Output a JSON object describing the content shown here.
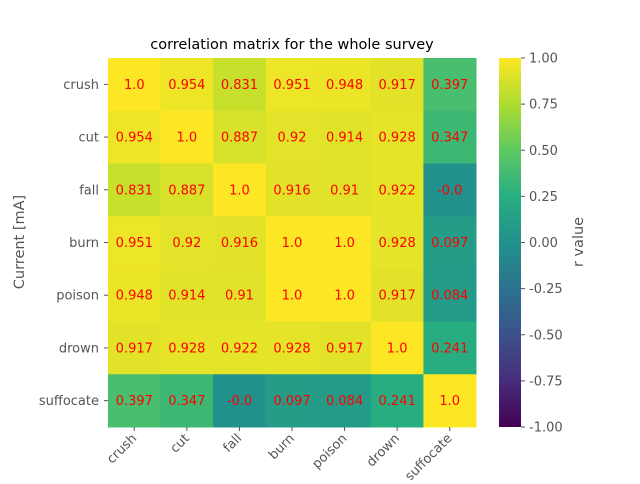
{
  "chart_data": {
    "type": "heatmap",
    "title": "correlation matrix for the whole survey",
    "ylabel": "Current [mA]",
    "xlabel": "",
    "categories": [
      "crush",
      "cut",
      "fall",
      "burn",
      "poison",
      "drown",
      "suffocate"
    ],
    "values": [
      [
        1.0,
        0.954,
        0.831,
        0.951,
        0.948,
        0.917,
        0.397
      ],
      [
        0.954,
        1.0,
        0.887,
        0.92,
        0.914,
        0.928,
        0.347
      ],
      [
        0.831,
        0.887,
        1.0,
        0.916,
        0.91,
        0.922,
        -0.0
      ],
      [
        0.951,
        0.92,
        0.916,
        1.0,
        1.0,
        0.928,
        0.097
      ],
      [
        0.948,
        0.914,
        0.91,
        1.0,
        1.0,
        0.917,
        0.084
      ],
      [
        0.917,
        0.928,
        0.922,
        0.928,
        0.917,
        1.0,
        0.241
      ],
      [
        0.397,
        0.347,
        -0.0,
        0.097,
        0.084,
        0.241,
        1.0
      ]
    ],
    "cell_labels": [
      [
        "1.0",
        "0.954",
        "0.831",
        "0.951",
        "0.948",
        "0.917",
        "0.397"
      ],
      [
        "0.954",
        "1.0",
        "0.887",
        "0.92",
        "0.914",
        "0.928",
        "0.347"
      ],
      [
        "0.831",
        "0.887",
        "1.0",
        "0.916",
        "0.91",
        "0.922",
        "-0.0"
      ],
      [
        "0.951",
        "0.92",
        "0.916",
        "1.0",
        "1.0",
        "0.928",
        "0.097"
      ],
      [
        "0.948",
        "0.914",
        "0.91",
        "1.0",
        "1.0",
        "0.917",
        "0.084"
      ],
      [
        "0.917",
        "0.928",
        "0.922",
        "0.928",
        "0.917",
        "1.0",
        "0.241"
      ],
      [
        "0.397",
        "0.347",
        "-0.0",
        "0.097",
        "0.084",
        "0.241",
        "1.0"
      ]
    ],
    "zlim": [
      -1.0,
      1.0
    ],
    "colormap": "viridis",
    "colorbar": {
      "label": "r value",
      "ticks": [
        "1.00",
        "0.75",
        "0.50",
        "0.25",
        "0.00",
        "-0.25",
        "-0.50",
        "-0.75",
        "-1.00"
      ],
      "tick_values": [
        1.0,
        0.75,
        0.5,
        0.25,
        0.0,
        -0.25,
        -0.5,
        -0.75,
        -1.0
      ]
    },
    "annotation_color": "#ff0000",
    "grid": false,
    "x_tick_rotation": "45 degrees"
  }
}
